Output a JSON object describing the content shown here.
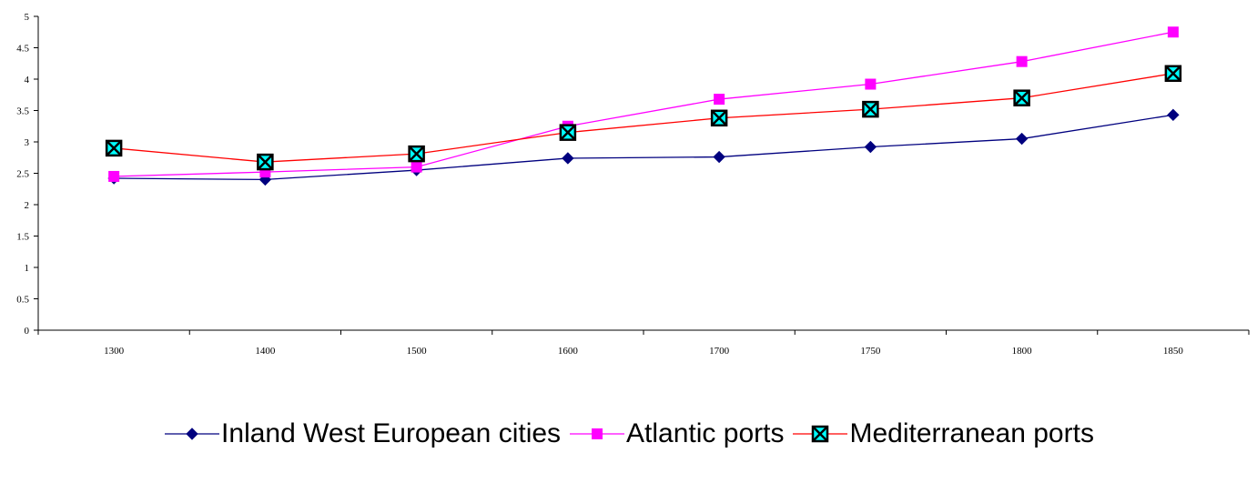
{
  "chart_data": {
    "type": "line",
    "title": "",
    "xlabel": "",
    "ylabel": "",
    "categories": [
      "1300",
      "1400",
      "1500",
      "1600",
      "1700",
      "1750",
      "1800",
      "1850"
    ],
    "ylim": [
      0,
      5
    ],
    "yticks": [
      "0",
      "0.5",
      "1",
      "1.5",
      "2",
      "2.5",
      "3",
      "3.5",
      "4",
      "4.5",
      "5"
    ],
    "grid": false,
    "legend_position": "bottom",
    "series": [
      {
        "name": "Inland West European cities",
        "values": [
          2.42,
          2.4,
          2.55,
          2.74,
          2.76,
          2.92,
          3.05,
          3.43
        ],
        "color": "#00007f",
        "marker": "diamond"
      },
      {
        "name": "Atlantic ports",
        "values": [
          2.45,
          2.52,
          2.6,
          3.25,
          3.68,
          3.92,
          4.28,
          4.75
        ],
        "color": "#ff00ff",
        "marker": "square"
      },
      {
        "name": "Mediterranean ports",
        "values": [
          2.9,
          2.68,
          2.81,
          3.15,
          3.38,
          3.52,
          3.7,
          4.09
        ],
        "color": "#ff0000",
        "marker": "x-square",
        "marker_fill": "#00ffff"
      }
    ]
  }
}
